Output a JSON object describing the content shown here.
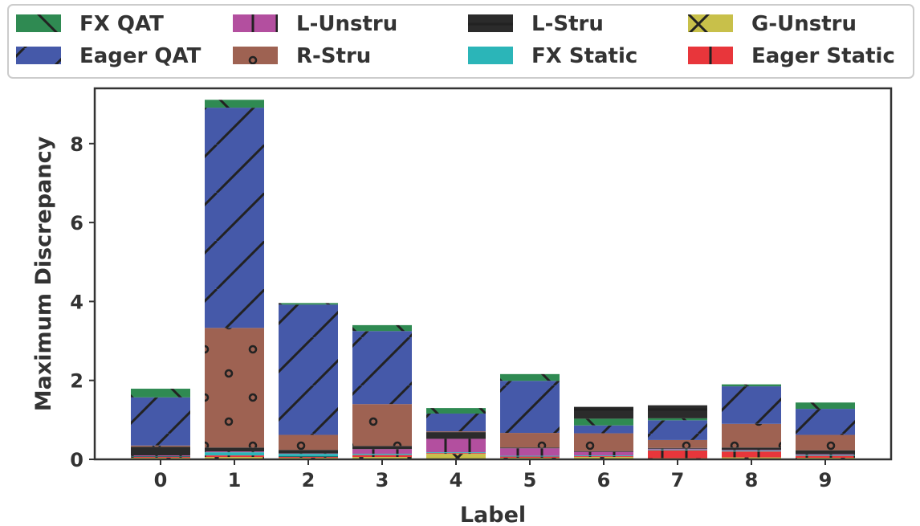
{
  "chart_data": {
    "type": "bar",
    "stacked": true,
    "title": "",
    "xlabel": "Label",
    "ylabel": "Maximum Discrepancy",
    "categories": [
      "0",
      "1",
      "2",
      "3",
      "4",
      "5",
      "6",
      "7",
      "8",
      "9"
    ],
    "ylim": [
      0,
      9.4
    ],
    "yticks": [
      0,
      2,
      4,
      6,
      8
    ],
    "grid": false,
    "legend_position": "top",
    "series": [
      {
        "name": "G-Unstru",
        "color": "#c8c04a",
        "hatch": "x",
        "values": [
          0.04,
          0.06,
          0.04,
          0.06,
          0.14,
          0.04,
          0.06,
          0.03,
          0.05,
          0.04
        ]
      },
      {
        "name": "Eager Static",
        "color": "#e8363b",
        "hatch": "|",
        "values": [
          0.02,
          0.04,
          0.02,
          0.05,
          0.02,
          0.03,
          0.02,
          0.2,
          0.15,
          0.05
        ]
      },
      {
        "name": "FX Static",
        "color": "#2bb5b8",
        "hatch": "-",
        "values": [
          0.02,
          0.08,
          0.08,
          0.03,
          0.02,
          0.02,
          0.02,
          0.02,
          0.02,
          0.02
        ]
      },
      {
        "name": "L-Unstru",
        "color": "#b34f9f",
        "hatch": "|",
        "values": [
          0.02,
          0.02,
          0.01,
          0.12,
          0.34,
          0.19,
          0.09,
          0.02,
          0.02,
          0.02
        ]
      },
      {
        "name": "L-Stru",
        "color": "#2b2b2b",
        "hatch": "-",
        "values": [
          0.22,
          0.1,
          0.09,
          0.08,
          0.17,
          0.02,
          0.02,
          0.02,
          0.06,
          0.1
        ]
      },
      {
        "name": "R-Stru",
        "color": "#9e6252",
        "hatch": "o",
        "values": [
          0.03,
          3.03,
          0.38,
          1.06,
          0.02,
          0.37,
          0.45,
          0.2,
          0.6,
          0.39
        ]
      },
      {
        "name": "Eager QAT",
        "color": "#4559a9",
        "hatch": "/",
        "values": [
          1.22,
          5.58,
          3.3,
          1.85,
          0.45,
          1.32,
          0.2,
          0.5,
          0.95,
          0.66
        ]
      },
      {
        "name": "FX QAT",
        "color": "#2f8a52",
        "hatch": "\\",
        "values": [
          0.22,
          0.2,
          0.04,
          0.15,
          0.14,
          0.17,
          0.17,
          0.05,
          0.05,
          0.16
        ]
      }
    ],
    "stack_totals_check": "bottom-to-top: G-Unstru, Eager Static, FX Static, L-Unstru, L-Stru, L-Stru(top segs), R-Stru, Eager QAT, FX QAT",
    "extra_top": {
      "L-Stru-top": [
        0,
        0,
        0,
        0,
        0,
        0,
        0.3,
        0.33,
        0,
        0
      ]
    },
    "legend": {
      "rows": [
        [
          "FX QAT",
          "L-Unstru",
          "L-Stru",
          "G-Unstru"
        ],
        [
          "Eager QAT",
          "R-Stru",
          "FX Static",
          "Eager Static"
        ]
      ]
    }
  }
}
